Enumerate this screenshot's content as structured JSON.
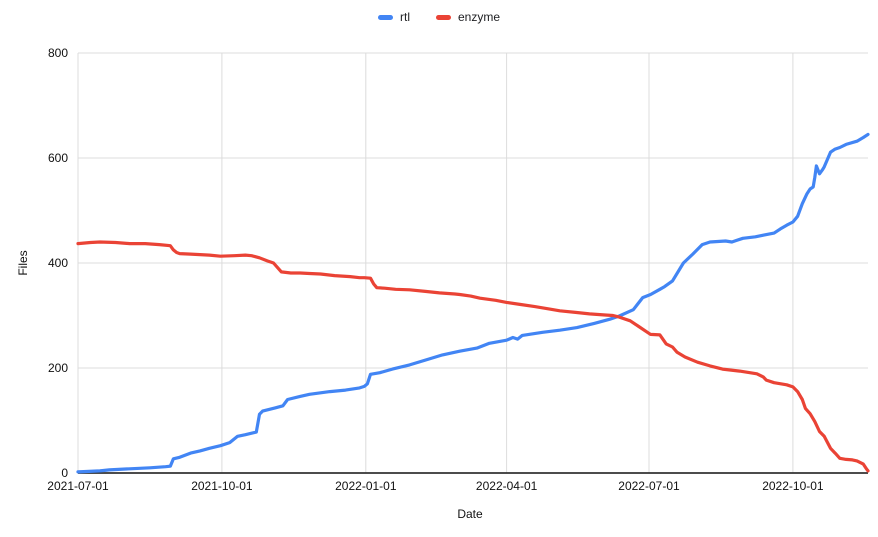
{
  "chart_data": {
    "type": "line",
    "title": "",
    "xlabel": "Date",
    "ylabel": "Files",
    "ylim": [
      0,
      800
    ],
    "y_ticks": [
      0,
      200,
      400,
      600,
      800
    ],
    "x_axis_unit": "days since first tick (2021-07-01)",
    "xlim_days": [
      0,
      505
    ],
    "x_ticks": [
      {
        "day": 0,
        "label": "2021-07-01"
      },
      {
        "day": 92,
        "label": "2021-10-01"
      },
      {
        "day": 184,
        "label": "2022-01-01"
      },
      {
        "day": 274,
        "label": "2022-04-01"
      },
      {
        "day": 365,
        "label": "2022-07-01"
      },
      {
        "day": 457,
        "label": "2022-10-01"
      }
    ],
    "grid": true,
    "legend_position": "top-center",
    "series": [
      {
        "name": "rtl",
        "color": "#4285F4",
        "points": [
          [
            0,
            2
          ],
          [
            14,
            4
          ],
          [
            20,
            6
          ],
          [
            33,
            8
          ],
          [
            46,
            10
          ],
          [
            56,
            12
          ],
          [
            59,
            13
          ],
          [
            61,
            27
          ],
          [
            65,
            30
          ],
          [
            72,
            38
          ],
          [
            78,
            42
          ],
          [
            84,
            47
          ],
          [
            91,
            52
          ],
          [
            97,
            58
          ],
          [
            102,
            70
          ],
          [
            107,
            73
          ],
          [
            114,
            78
          ],
          [
            116,
            112
          ],
          [
            118,
            118
          ],
          [
            126,
            124
          ],
          [
            131,
            128
          ],
          [
            134,
            140
          ],
          [
            142,
            146
          ],
          [
            148,
            150
          ],
          [
            161,
            155
          ],
          [
            171,
            158
          ],
          [
            180,
            162
          ],
          [
            183,
            165
          ],
          [
            185,
            170
          ],
          [
            187,
            188
          ],
          [
            193,
            191
          ],
          [
            201,
            198
          ],
          [
            212,
            206
          ],
          [
            222,
            215
          ],
          [
            233,
            225
          ],
          [
            244,
            232
          ],
          [
            255,
            238
          ],
          [
            263,
            247
          ],
          [
            274,
            253
          ],
          [
            278,
            258
          ],
          [
            281,
            255
          ],
          [
            284,
            262
          ],
          [
            297,
            268
          ],
          [
            308,
            272
          ],
          [
            319,
            277
          ],
          [
            330,
            285
          ],
          [
            340,
            293
          ],
          [
            346,
            299
          ],
          [
            355,
            311
          ],
          [
            361,
            334
          ],
          [
            366,
            340
          ],
          [
            372,
            350
          ],
          [
            375,
            355
          ],
          [
            380,
            366
          ],
          [
            387,
            400
          ],
          [
            393,
            417
          ],
          [
            399,
            435
          ],
          [
            404,
            440
          ],
          [
            414,
            442
          ],
          [
            418,
            440
          ],
          [
            421,
            443
          ],
          [
            425,
            447
          ],
          [
            433,
            450
          ],
          [
            438,
            453
          ],
          [
            445,
            457
          ],
          [
            449,
            465
          ],
          [
            453,
            472
          ],
          [
            457,
            478
          ],
          [
            460,
            489
          ],
          [
            463,
            513
          ],
          [
            466,
            532
          ],
          [
            468,
            541
          ],
          [
            470,
            545
          ],
          [
            471,
            563
          ],
          [
            472,
            585
          ],
          [
            474,
            570
          ],
          [
            476,
            578
          ],
          [
            477,
            583
          ],
          [
            481,
            611
          ],
          [
            484,
            617
          ],
          [
            487,
            620
          ],
          [
            491,
            626
          ],
          [
            498,
            632
          ],
          [
            502,
            639
          ],
          [
            505,
            645
          ]
        ]
      },
      {
        "name": "enzyme",
        "color": "#EA4335",
        "points": [
          [
            0,
            437
          ],
          [
            8,
            439
          ],
          [
            14,
            440
          ],
          [
            24,
            439
          ],
          [
            33,
            437
          ],
          [
            43,
            437
          ],
          [
            52,
            435
          ],
          [
            59,
            433
          ],
          [
            61,
            425
          ],
          [
            63,
            420
          ],
          [
            65,
            418
          ],
          [
            72,
            417
          ],
          [
            78,
            416
          ],
          [
            84,
            415
          ],
          [
            91,
            413
          ],
          [
            100,
            414
          ],
          [
            107,
            415
          ],
          [
            111,
            414
          ],
          [
            116,
            410
          ],
          [
            121,
            404
          ],
          [
            125,
            400
          ],
          [
            128,
            390
          ],
          [
            130,
            383
          ],
          [
            136,
            381
          ],
          [
            142,
            381
          ],
          [
            148,
            380
          ],
          [
            155,
            379
          ],
          [
            164,
            376
          ],
          [
            174,
            374
          ],
          [
            180,
            372
          ],
          [
            183,
            372
          ],
          [
            187,
            371
          ],
          [
            189,
            360
          ],
          [
            191,
            353
          ],
          [
            196,
            352
          ],
          [
            203,
            350
          ],
          [
            212,
            349
          ],
          [
            222,
            346
          ],
          [
            231,
            343
          ],
          [
            241,
            341
          ],
          [
            244,
            340
          ],
          [
            251,
            337
          ],
          [
            257,
            333
          ],
          [
            267,
            329
          ],
          [
            274,
            325
          ],
          [
            283,
            321
          ],
          [
            292,
            317
          ],
          [
            302,
            312
          ],
          [
            308,
            309
          ],
          [
            318,
            306
          ],
          [
            327,
            303
          ],
          [
            337,
            301
          ],
          [
            342,
            300
          ],
          [
            346,
            297
          ],
          [
            353,
            290
          ],
          [
            358,
            280
          ],
          [
            363,
            270
          ],
          [
            366,
            264
          ],
          [
            372,
            263
          ],
          [
            376,
            246
          ],
          [
            380,
            240
          ],
          [
            383,
            230
          ],
          [
            388,
            221
          ],
          [
            396,
            211
          ],
          [
            404,
            204
          ],
          [
            412,
            198
          ],
          [
            423,
            194
          ],
          [
            434,
            189
          ],
          [
            438,
            183
          ],
          [
            440,
            177
          ],
          [
            445,
            172
          ],
          [
            453,
            168
          ],
          [
            457,
            164
          ],
          [
            460,
            155
          ],
          [
            463,
            140
          ],
          [
            465,
            123
          ],
          [
            468,
            113
          ],
          [
            471,
            98
          ],
          [
            474,
            79
          ],
          [
            477,
            70
          ],
          [
            481,
            47
          ],
          [
            484,
            38
          ],
          [
            487,
            28
          ],
          [
            491,
            26
          ],
          [
            495,
            25
          ],
          [
            498,
            23
          ],
          [
            502,
            17
          ],
          [
            504,
            8
          ],
          [
            505,
            4
          ]
        ]
      }
    ]
  }
}
